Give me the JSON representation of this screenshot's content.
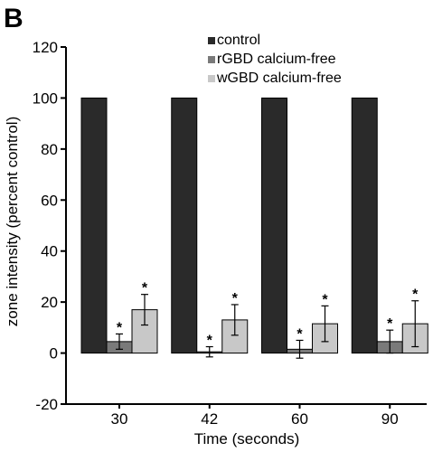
{
  "panel_label": "B",
  "chart_data": {
    "type": "bar",
    "categories": [
      "30",
      "42",
      "60",
      "90"
    ],
    "series": [
      {
        "name": "control",
        "values": [
          100,
          100,
          100,
          100
        ],
        "errors": [
          0,
          0,
          0,
          0
        ],
        "stars": [
          false,
          false,
          false,
          false
        ],
        "color": "#2a2a2a"
      },
      {
        "name": "rGBD calcium-free",
        "values": [
          4.5,
          0.5,
          1.5,
          4.5
        ],
        "errors": [
          3,
          2,
          3.5,
          4.5
        ],
        "stars": [
          true,
          true,
          true,
          true
        ],
        "color": "#7a7a7a"
      },
      {
        "name": "wGBD calcium-free",
        "values": [
          17,
          13,
          11.5,
          11.5
        ],
        "errors": [
          6,
          6,
          7,
          9
        ],
        "stars": [
          true,
          true,
          true,
          true
        ],
        "color": "#c8c8c8"
      }
    ],
    "star_symbol": "*",
    "xlabel": "Time (seconds)",
    "ylabel": "zone intensity (percent control)",
    "ylim": [
      -20,
      120
    ],
    "yticks": [
      -20,
      0,
      20,
      40,
      60,
      80,
      100,
      120
    ],
    "grid": false,
    "legend_position": "top-right"
  }
}
